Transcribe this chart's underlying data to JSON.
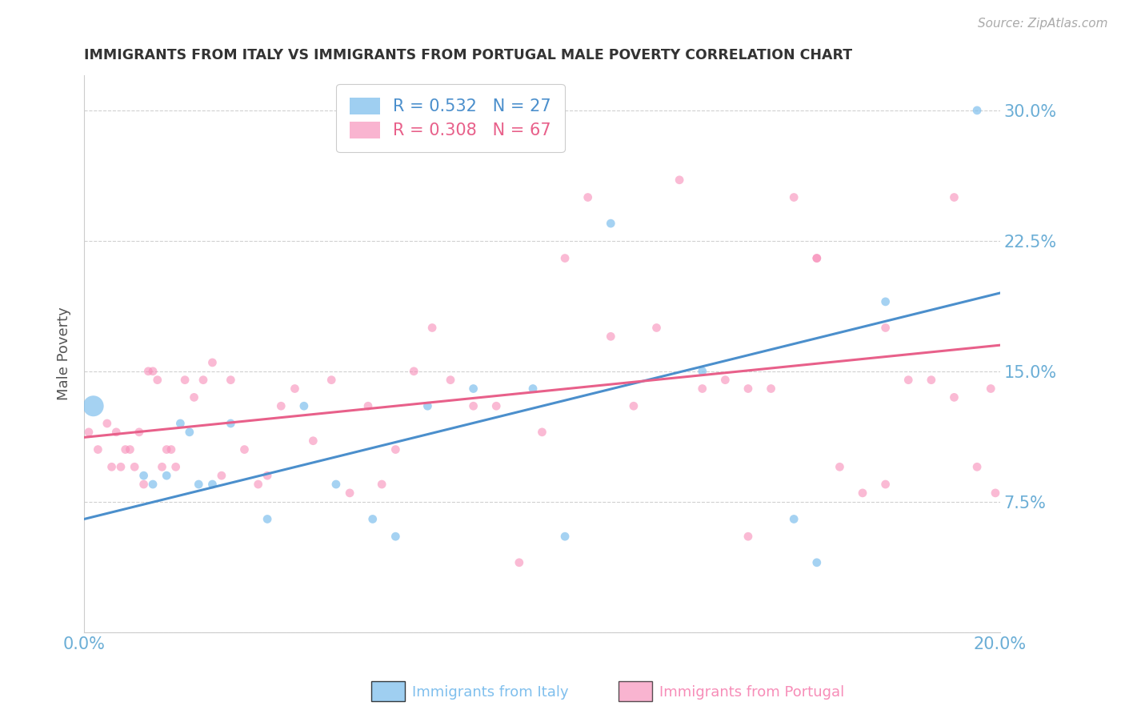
{
  "title": "IMMIGRANTS FROM ITALY VS IMMIGRANTS FROM PORTUGAL MALE POVERTY CORRELATION CHART",
  "source": "Source: ZipAtlas.com",
  "ylabel": "Male Poverty",
  "xlim": [
    0.0,
    0.2
  ],
  "ylim": [
    0.0,
    0.32
  ],
  "yticks": [
    0.0,
    0.075,
    0.15,
    0.225,
    0.3
  ],
  "ytick_labels": [
    "",
    "7.5%",
    "15.0%",
    "22.5%",
    "30.0%"
  ],
  "xticks": [
    0.0,
    0.05,
    0.1,
    0.15,
    0.2
  ],
  "xtick_labels": [
    "0.0%",
    "",
    "",
    "",
    "20.0%"
  ],
  "italy_color": "#7fbfed",
  "portugal_color": "#f78db8",
  "italy_line_color": "#4b8fcc",
  "portugal_line_color": "#e8608a",
  "tick_color": "#6baed6",
  "title_color": "#333333",
  "background_color": "#ffffff",
  "grid_color": "#d0d0d0",
  "italy_x": [
    0.002,
    0.013,
    0.015,
    0.018,
    0.021,
    0.023,
    0.025,
    0.028,
    0.032,
    0.04,
    0.048,
    0.055,
    0.063,
    0.068,
    0.075,
    0.085,
    0.098,
    0.105,
    0.115,
    0.135,
    0.155,
    0.16,
    0.175,
    0.195
  ],
  "italy_y": [
    0.13,
    0.09,
    0.085,
    0.09,
    0.12,
    0.115,
    0.085,
    0.085,
    0.12,
    0.065,
    0.13,
    0.085,
    0.065,
    0.055,
    0.13,
    0.14,
    0.14,
    0.055,
    0.235,
    0.15,
    0.065,
    0.04,
    0.19,
    0.3
  ],
  "italy_sizes": [
    350,
    60,
    60,
    60,
    60,
    60,
    60,
    60,
    60,
    60,
    60,
    60,
    60,
    60,
    60,
    60,
    60,
    60,
    60,
    60,
    60,
    60,
    60,
    60
  ],
  "portugal_x": [
    0.001,
    0.003,
    0.005,
    0.006,
    0.007,
    0.008,
    0.009,
    0.01,
    0.011,
    0.012,
    0.013,
    0.014,
    0.015,
    0.016,
    0.017,
    0.018,
    0.019,
    0.02,
    0.022,
    0.024,
    0.026,
    0.028,
    0.03,
    0.032,
    0.035,
    0.038,
    0.04,
    0.043,
    0.046,
    0.05,
    0.054,
    0.058,
    0.062,
    0.065,
    0.068,
    0.072,
    0.076,
    0.08,
    0.085,
    0.09,
    0.095,
    0.1,
    0.105,
    0.11,
    0.115,
    0.12,
    0.125,
    0.13,
    0.135,
    0.14,
    0.145,
    0.15,
    0.155,
    0.16,
    0.165,
    0.17,
    0.175,
    0.18,
    0.185,
    0.19,
    0.195,
    0.198,
    0.199,
    0.19,
    0.175,
    0.16,
    0.145
  ],
  "portugal_y": [
    0.115,
    0.105,
    0.12,
    0.095,
    0.115,
    0.095,
    0.105,
    0.105,
    0.095,
    0.115,
    0.085,
    0.15,
    0.15,
    0.145,
    0.095,
    0.105,
    0.105,
    0.095,
    0.145,
    0.135,
    0.145,
    0.155,
    0.09,
    0.145,
    0.105,
    0.085,
    0.09,
    0.13,
    0.14,
    0.11,
    0.145,
    0.08,
    0.13,
    0.085,
    0.105,
    0.15,
    0.175,
    0.145,
    0.13,
    0.13,
    0.04,
    0.115,
    0.215,
    0.25,
    0.17,
    0.13,
    0.175,
    0.26,
    0.14,
    0.145,
    0.055,
    0.14,
    0.25,
    0.215,
    0.095,
    0.08,
    0.085,
    0.145,
    0.145,
    0.135,
    0.095,
    0.14,
    0.08,
    0.25,
    0.175,
    0.215,
    0.14
  ],
  "portugal_sizes": [
    60,
    60,
    60,
    60,
    60,
    60,
    60,
    60,
    60,
    60,
    60,
    60,
    60,
    60,
    60,
    60,
    60,
    60,
    60,
    60,
    60,
    60,
    60,
    60,
    60,
    60,
    60,
    60,
    60,
    60,
    60,
    60,
    60,
    60,
    60,
    60,
    60,
    60,
    60,
    60,
    60,
    60,
    60,
    60,
    60,
    60,
    60,
    60,
    60,
    60,
    60,
    60,
    60,
    60,
    60,
    60,
    60,
    60,
    60,
    60,
    60,
    60,
    60,
    60,
    60,
    60,
    60
  ],
  "italy_line_x0": 0.0,
  "italy_line_y0": 0.065,
  "italy_line_x1": 0.2,
  "italy_line_y1": 0.195,
  "portugal_line_x0": 0.0,
  "portugal_line_y0": 0.112,
  "portugal_line_x1": 0.2,
  "portugal_line_y1": 0.165
}
